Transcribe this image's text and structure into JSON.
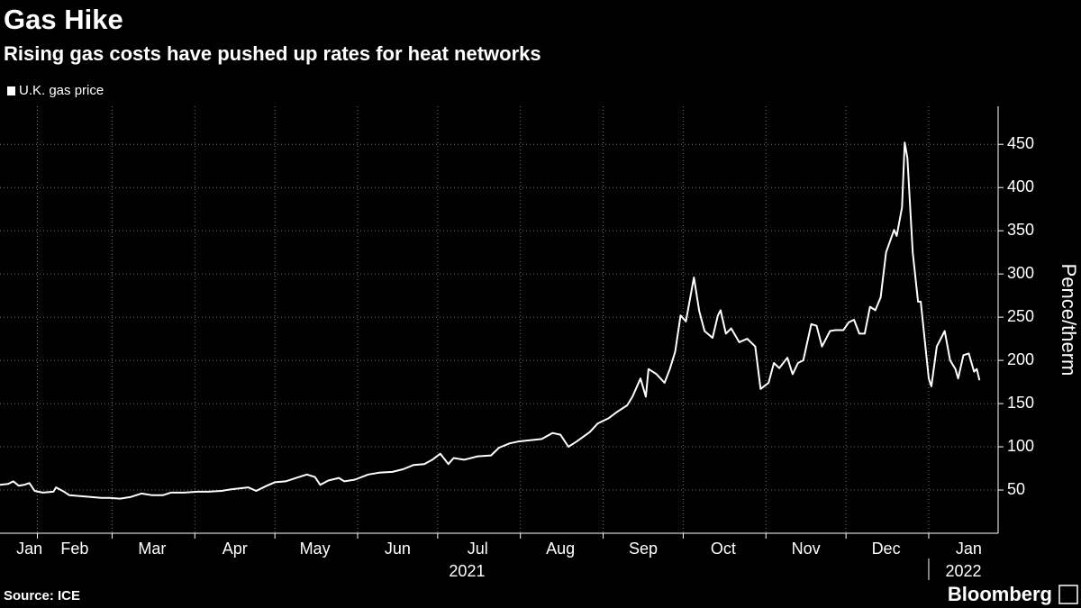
{
  "chart_data": {
    "type": "line",
    "title": "Gas Hike",
    "subtitle": "Rising gas costs have pushed up rates for heat networks",
    "y_axis_label": "Pence/therm",
    "source": "Source: ICE",
    "brand": "Bloomberg",
    "series": [
      {
        "name": "U.K. gas price",
        "color": "#ffffff",
        "x": [
          0,
          3,
          5,
          7,
          9,
          11,
          13,
          16,
          20,
          21,
          24,
          26,
          30,
          34,
          38,
          41,
          45,
          49,
          53,
          57,
          61,
          64,
          69,
          74,
          78,
          83,
          87,
          93,
          96,
          100,
          103,
          107,
          111,
          115,
          118,
          120,
          123,
          127,
          129,
          133,
          138,
          142,
          147,
          151,
          155,
          159,
          162,
          165,
          168,
          170,
          174,
          179,
          184,
          187,
          191,
          194,
          197,
          203,
          207,
          210,
          213,
          216,
          221,
          224,
          228,
          231,
          235,
          237,
          240,
          242,
          243,
          246,
          249,
          251,
          253,
          255,
          257,
          260,
          262,
          264,
          267,
          269,
          270,
          272,
          274,
          277,
          280,
          283,
          285,
          288,
          290,
          292,
          295,
          297,
          299,
          301,
          304,
          306,
          308,
          311,
          313,
          316,
          318,
          320,
          322,
          324,
          326,
          328,
          330,
          332,
          335,
          336,
          338,
          339,
          340,
          342,
          344,
          345,
          348,
          349,
          351,
          354,
          356,
          358,
          359,
          361,
          363,
          365,
          366,
          367
        ],
        "values": [
          56,
          57,
          60,
          55,
          56,
          58,
          49,
          47,
          48,
          53,
          48,
          44,
          43,
          42,
          41,
          41,
          40,
          42,
          46,
          44,
          44,
          47,
          47,
          48,
          48,
          49,
          51,
          53,
          49,
          55,
          59,
          60,
          64,
          68,
          65,
          56,
          61,
          64,
          60,
          62,
          68,
          70,
          71,
          74,
          79,
          80,
          85,
          92,
          80,
          87,
          85,
          89,
          90,
          99,
          104,
          106,
          107,
          109,
          116,
          114,
          100,
          106,
          117,
          127,
          133,
          140,
          148,
          158,
          179,
          158,
          190,
          184,
          174,
          190,
          210,
          252,
          245,
          296,
          257,
          234,
          226,
          252,
          258,
          231,
          237,
          221,
          225,
          216,
          167,
          174,
          197,
          191,
          203,
          184,
          197,
          200,
          242,
          240,
          216,
          234,
          235,
          235,
          244,
          247,
          231,
          231,
          262,
          258,
          273,
          325,
          351,
          344,
          377,
          452,
          434,
          325,
          268,
          268,
          179,
          170,
          216,
          234,
          200,
          190,
          179,
          206,
          208,
          187,
          190,
          177
        ]
      }
    ],
    "legend": "top-left",
    "xlim": [
      0,
      374
    ],
    "xticks": [
      14,
      42,
      73,
      103,
      134,
      164,
      195,
      226,
      256,
      287,
      317,
      348
    ],
    "month_labels": [
      {
        "value": 11,
        "label": "Jan"
      },
      {
        "value": 28,
        "label": "Feb"
      },
      {
        "value": 57,
        "label": "Mar"
      },
      {
        "value": 88,
        "label": "Apr"
      },
      {
        "value": 118,
        "label": "May"
      },
      {
        "value": 149,
        "label": "Jun"
      },
      {
        "value": 179,
        "label": "Jul"
      },
      {
        "value": 210,
        "label": "Aug"
      },
      {
        "value": 241,
        "label": "Sep"
      },
      {
        "value": 271,
        "label": "Oct"
      },
      {
        "value": 302,
        "label": "Nov"
      },
      {
        "value": 332,
        "label": "Dec"
      },
      {
        "value": 363,
        "label": "Jan"
      }
    ],
    "year_labels": [
      {
        "value": 175,
        "label": "2021"
      },
      {
        "value": 361,
        "label": "2022"
      }
    ],
    "year_divider": 348,
    "ylim": [
      0,
      494
    ],
    "yticks": [
      50,
      100,
      150,
      200,
      250,
      300,
      350,
      400,
      450
    ],
    "grid": true
  }
}
